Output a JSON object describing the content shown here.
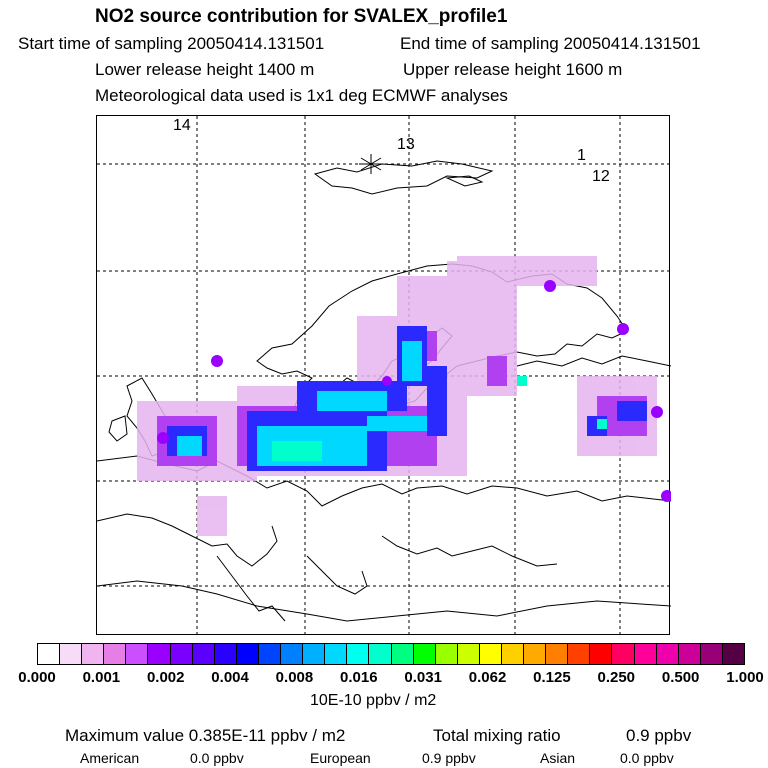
{
  "header": {
    "title": "NO2 source contribution for SVALEX_profile1",
    "start": "Start time of sampling 20050414.131501",
    "end": "End time of sampling 20050414.131501",
    "lower": "Lower release height 1400 m",
    "upper": "Upper release height 1600 m",
    "met": "Meteorological data used is 1x1 deg ECMWF analyses"
  },
  "map": {
    "labels": [
      "14",
      "13",
      "1",
      "12"
    ],
    "release_marker": "release-point-star"
  },
  "colorbar": {
    "colors": [
      "#ffffff",
      "#f6dcf6",
      "#f0b4f0",
      "#e67ee6",
      "#cc4fff",
      "#9a00ff",
      "#7a00ff",
      "#5a00ff",
      "#2a00ff",
      "#0000ff",
      "#0044ff",
      "#0080ff",
      "#00b0ff",
      "#00d8ff",
      "#00ffee",
      "#00ffcc",
      "#00ff80",
      "#00ff00",
      "#9aff00",
      "#ccff00",
      "#ffff00",
      "#ffd000",
      "#ffaa00",
      "#ff8000",
      "#ff4000",
      "#ff0000",
      "#ff0060",
      "#ff0099",
      "#ee00aa",
      "#cc0099",
      "#990077",
      "#550044"
    ],
    "ticks": [
      "0.000",
      "0.001",
      "0.002",
      "0.004",
      "0.008",
      "0.016",
      "0.031",
      "0.062",
      "0.125",
      "0.250",
      "0.500",
      "1.000"
    ],
    "units": "10E-10 ppbv / m2"
  },
  "footer": {
    "max_label": "Maximum value  0.385E-11 ppbv / m2",
    "total_label": "Total mixing ratio",
    "total_value": "0.9 ppbv",
    "american": "American",
    "american_value": "0.0 ppbv",
    "european": "European",
    "european_value": "0.9 ppbv",
    "asian": "Asian",
    "asian_value": "0.0 ppbv"
  }
}
